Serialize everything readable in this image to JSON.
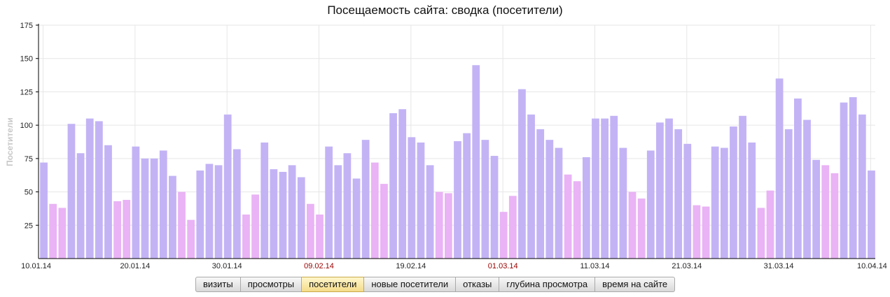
{
  "chart_data": {
    "type": "bar",
    "title": "Посещаемость сайта: сводка (посетители)",
    "ylabel": "Посетители",
    "ylim": [
      0,
      175
    ],
    "yticks": [
      25,
      50,
      75,
      100,
      125,
      150,
      175
    ],
    "grid": true,
    "x_start": "10.01.14",
    "x_end": "10.04.14",
    "x_tick_labels": [
      {
        "index": 0,
        "label": "10.01.14",
        "highlight": false
      },
      {
        "index": 10,
        "label": "20.01.14",
        "highlight": false
      },
      {
        "index": 20,
        "label": "30.01.14",
        "highlight": false
      },
      {
        "index": 30,
        "label": "09.02.14",
        "highlight": true
      },
      {
        "index": 40,
        "label": "19.02.14",
        "highlight": false
      },
      {
        "index": 50,
        "label": "01.03.14",
        "highlight": true
      },
      {
        "index": 60,
        "label": "11.03.14",
        "highlight": false
      },
      {
        "index": 70,
        "label": "21.03.14",
        "highlight": false
      },
      {
        "index": 80,
        "label": "31.03.14",
        "highlight": false
      },
      {
        "index": 90,
        "label": "10.04.14",
        "highlight": false
      }
    ],
    "values": [
      72,
      41,
      38,
      101,
      79,
      105,
      103,
      85,
      43,
      44,
      84,
      75,
      75,
      81,
      62,
      50,
      29,
      66,
      71,
      70,
      108,
      82,
      33,
      48,
      87,
      67,
      65,
      70,
      61,
      41,
      33,
      84,
      70,
      79,
      60,
      89,
      72,
      56,
      109,
      112,
      91,
      87,
      70,
      50,
      49,
      88,
      94,
      145,
      89,
      77,
      35,
      47,
      127,
      108,
      97,
      89,
      83,
      63,
      58,
      76,
      105,
      105,
      107,
      83,
      50,
      45,
      81,
      102,
      105,
      97,
      86,
      40,
      39,
      84,
      83,
      99,
      107,
      87,
      38,
      51,
      135,
      97,
      120,
      104,
      74,
      70,
      64,
      117,
      121,
      108,
      66
    ],
    "weekend": [
      false,
      true,
      true,
      false,
      false,
      false,
      false,
      false,
      true,
      true,
      false,
      false,
      false,
      false,
      false,
      true,
      true,
      false,
      false,
      false,
      false,
      false,
      true,
      true,
      false,
      false,
      false,
      false,
      false,
      true,
      true,
      false,
      false,
      false,
      false,
      false,
      true,
      true,
      false,
      false,
      false,
      false,
      false,
      true,
      true,
      false,
      false,
      false,
      false,
      false,
      true,
      true,
      false,
      false,
      false,
      false,
      false,
      true,
      true,
      false,
      false,
      false,
      false,
      false,
      true,
      true,
      false,
      false,
      false,
      false,
      false,
      true,
      true,
      false,
      false,
      false,
      false,
      false,
      true,
      true,
      false,
      false,
      false,
      false,
      false,
      true,
      true,
      false,
      false,
      false,
      false
    ],
    "colors": {
      "weekday": "#c3b3f5",
      "weekend": "#e9b3f5",
      "highlight_label": "#990000",
      "grid": "#e6e6e6",
      "axis": "#000000",
      "ylabel": "#c8c8c8"
    }
  },
  "tabs": [
    {
      "label": "визиты",
      "active": false
    },
    {
      "label": "просмотры",
      "active": false
    },
    {
      "label": "посетители",
      "active": true
    },
    {
      "label": "новые посетители",
      "active": false
    },
    {
      "label": "отказы",
      "active": false
    },
    {
      "label": "глубина просмотра",
      "active": false
    },
    {
      "label": "время на сайте",
      "active": false
    }
  ]
}
